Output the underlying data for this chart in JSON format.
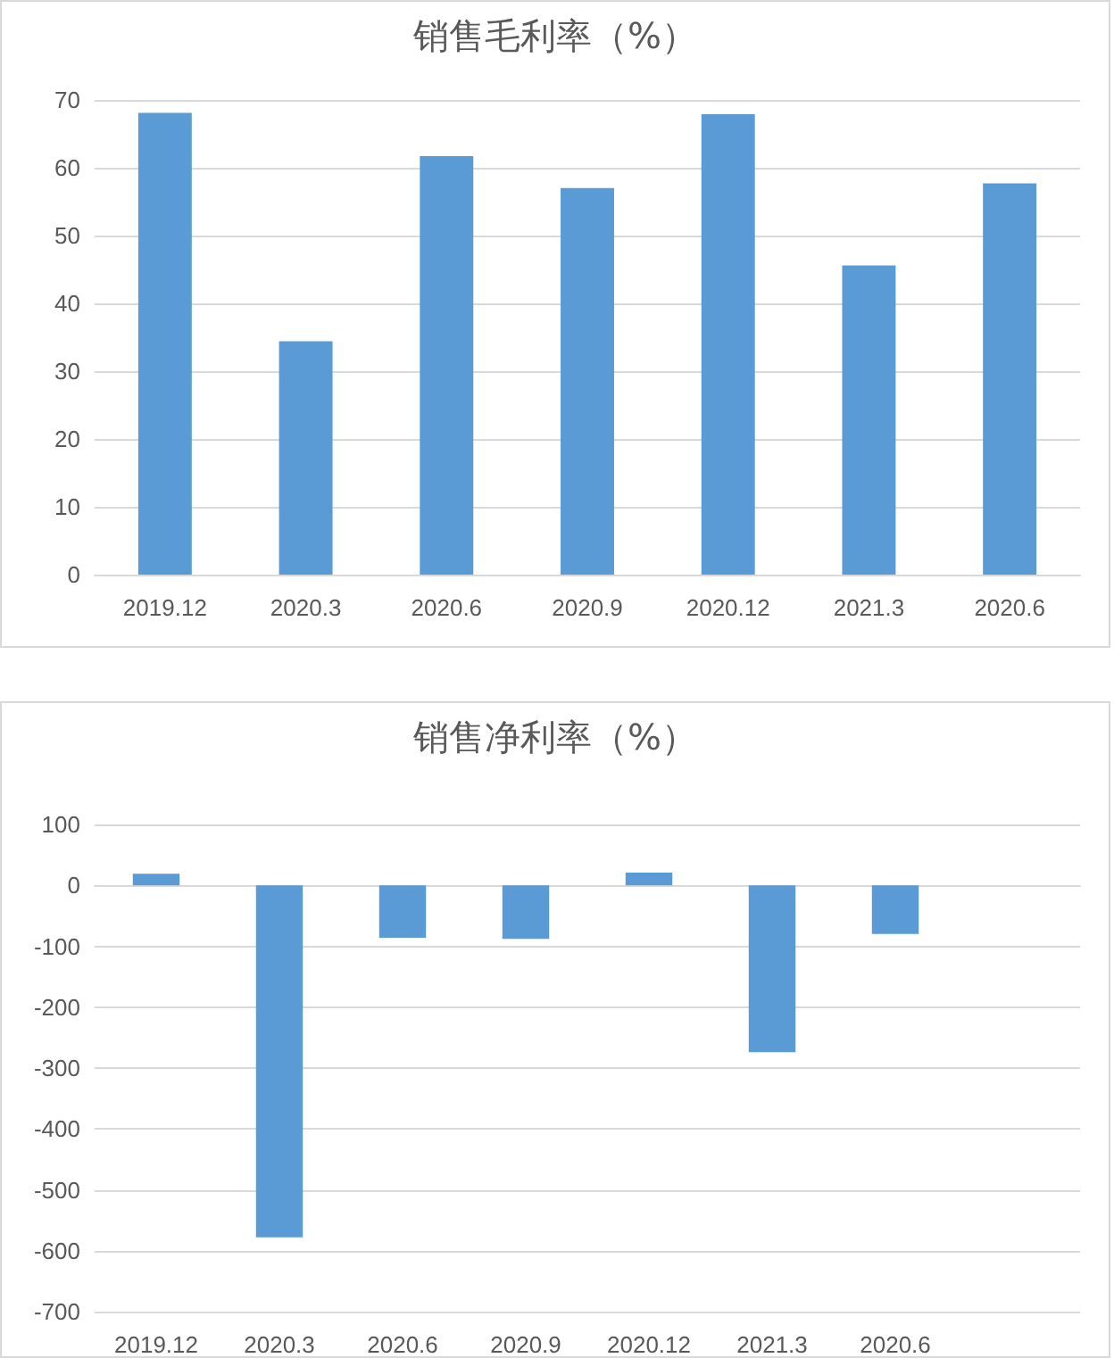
{
  "chart_data": [
    {
      "type": "bar",
      "title": "销售毛利率（%）",
      "categories": [
        "2019.12",
        "2020.3",
        "2020.6",
        "2020.9",
        "2020.12",
        "2021.3",
        "2020.6"
      ],
      "values": [
        68.1,
        34.4,
        61.7,
        57.0,
        67.9,
        45.6,
        57.7
      ],
      "color": "#5b9bd5",
      "ylim": [
        0,
        70
      ],
      "yticks": [
        0,
        10,
        20,
        30,
        40,
        50,
        60,
        70
      ],
      "grid": "y"
    },
    {
      "type": "bar",
      "title": "销售净利率（%）",
      "categories": [
        "2019.12",
        "2020.3",
        "2020.6",
        "2020.9",
        "2020.12",
        "2021.3",
        "2020.6",
        null
      ],
      "values": [
        19,
        -578,
        -86,
        -88,
        21,
        -274,
        -80,
        null
      ],
      "color": "#5b9bd5",
      "ylim": [
        -700,
        100
      ],
      "yticks": [
        -700,
        -600,
        -500,
        -400,
        -300,
        -200,
        -100,
        0,
        100
      ],
      "grid": "y"
    }
  ]
}
